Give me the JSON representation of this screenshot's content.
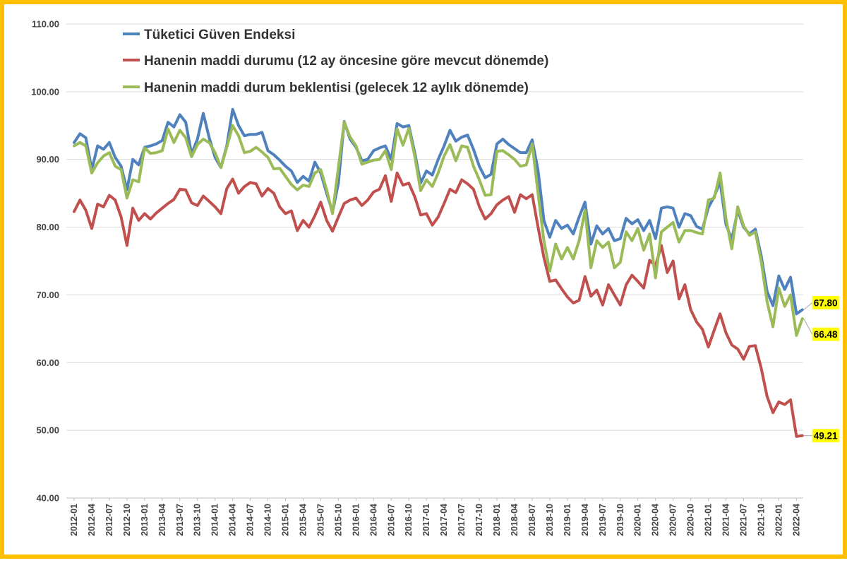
{
  "colors": {
    "frame": "#FFC000",
    "callout_bg": "#FFFF00",
    "grid": "#D9D9D9"
  },
  "chart_data": {
    "type": "line",
    "ylim": [
      40,
      110
    ],
    "y_ticks": [
      "40.00",
      "50.00",
      "60.00",
      "70.00",
      "80.00",
      "90.00",
      "100.00",
      "110.00"
    ],
    "y_tick_values": [
      40,
      50,
      60,
      70,
      80,
      90,
      100,
      110
    ],
    "grid": {
      "horizontal": true,
      "vertical": false
    },
    "legend_position": "top-left",
    "x_start": "2012-01",
    "x_end": "2022-05",
    "x_tick_labels": [
      "2012-01",
      "2012-04",
      "2012-07",
      "2012-10",
      "2013-01",
      "2013-04",
      "2013-07",
      "2013-10",
      "2014-01",
      "2014-04",
      "2014-07",
      "2014-10",
      "2015-01",
      "2015-04",
      "2015-07",
      "2015-10",
      "2016-01",
      "2016-04",
      "2016-07",
      "2016-10",
      "2017-01",
      "2017-04",
      "2017-07",
      "2017-10",
      "2018-01",
      "2018-04",
      "2018-07",
      "2018-10",
      "2019-01",
      "2019-04",
      "2019-07",
      "2019-10",
      "2020-01",
      "2020-04",
      "2020-07",
      "2020-10",
      "2021-01",
      "2021-04",
      "2021-07",
      "2021-10",
      "2022-01",
      "2022-04"
    ],
    "series": [
      {
        "name": "Tüketici Güven Endeksi",
        "color": "#4F81BD",
        "last_label": "67.80",
        "values": [
          92.5,
          93.8,
          93.2,
          88.5,
          92.0,
          91.5,
          92.5,
          90.3,
          89.0,
          85.5,
          90.0,
          89.2,
          91.8,
          92.0,
          92.3,
          92.8,
          95.5,
          94.8,
          96.6,
          95.5,
          90.8,
          93.0,
          96.8,
          93.2,
          90.3,
          88.8,
          92.0,
          97.4,
          95.0,
          93.5,
          93.7,
          93.7,
          94.0,
          91.3,
          90.7,
          89.9,
          89.0,
          88.3,
          86.6,
          87.5,
          86.8,
          89.6,
          88.0,
          85.0,
          82.2,
          86.5,
          95.6,
          93.0,
          91.8,
          89.8,
          90.0,
          91.3,
          91.7,
          92.0,
          90.0,
          95.3,
          94.8,
          95.0,
          91.0,
          86.5,
          88.3,
          87.7,
          90.0,
          92.0,
          94.3,
          92.7,
          93.3,
          93.6,
          91.5,
          89.0,
          87.3,
          87.8,
          92.3,
          93.0,
          92.2,
          91.6,
          91.0,
          91.0,
          92.9,
          88.4,
          81.0,
          78.5,
          81.0,
          79.8,
          80.3,
          79.0,
          81.5,
          83.7,
          77.5,
          80.2,
          79.0,
          79.8,
          78.0,
          78.3,
          81.3,
          80.5,
          81.1,
          79.5,
          81.0,
          78.3,
          82.8,
          83.0,
          82.8,
          80.0,
          82.0,
          81.7,
          80.1,
          79.7,
          82.9,
          84.5,
          86.7,
          80.4,
          78.2,
          82.5,
          80.0,
          79.0,
          79.7,
          75.8,
          70.5,
          68.4,
          72.8,
          70.8,
          72.6,
          67.2,
          67.8
        ]
      },
      {
        "name": "Hanenin maddi durumu (12 ay öncesine göre mevcut dönemde)",
        "color": "#C0504D",
        "last_label": "49.21",
        "values": [
          82.3,
          84.0,
          82.5,
          79.8,
          83.4,
          83.0,
          84.7,
          84.0,
          81.5,
          77.3,
          82.8,
          81.0,
          82.0,
          81.2,
          82.1,
          82.8,
          83.5,
          84.1,
          85.6,
          85.5,
          83.6,
          83.2,
          84.6,
          83.8,
          83.0,
          82.0,
          85.7,
          87.1,
          85.0,
          86.0,
          86.6,
          86.4,
          84.6,
          85.7,
          85.0,
          83.0,
          82.0,
          82.4,
          79.5,
          81.0,
          80.0,
          81.7,
          83.7,
          81.0,
          79.4,
          81.5,
          83.5,
          84.0,
          84.3,
          83.2,
          84.0,
          85.2,
          85.6,
          87.6,
          83.8,
          88.0,
          86.2,
          86.5,
          84.5,
          81.8,
          82.0,
          80.3,
          81.5,
          83.5,
          85.6,
          85.1,
          87.0,
          86.4,
          85.6,
          83.0,
          81.2,
          82.0,
          83.3,
          84.0,
          84.5,
          82.2,
          84.8,
          84.2,
          84.8,
          80.0,
          75.5,
          72.0,
          72.2,
          70.9,
          69.7,
          68.8,
          69.2,
          72.7,
          69.8,
          70.7,
          68.5,
          71.5,
          70.0,
          68.5,
          71.5,
          72.9,
          72.0,
          71.0,
          75.1,
          74.3,
          77.3,
          73.3,
          75.0,
          69.4,
          71.5,
          67.8,
          66.0,
          64.9,
          62.3,
          64.8,
          67.2,
          64.4,
          62.6,
          62.0,
          60.5,
          62.4,
          62.5,
          59.2,
          55.0,
          52.6,
          54.2,
          53.8,
          54.5,
          49.1,
          49.21
        ]
      },
      {
        "name": "Hanenin maddi durum beklentisi (gelecek 12 aylık dönemde)",
        "color": "#9BBB59",
        "last_label": "66.48",
        "values": [
          92.0,
          92.5,
          92.0,
          88.0,
          89.5,
          90.5,
          91.0,
          89.0,
          88.5,
          84.3,
          87.0,
          86.7,
          91.7,
          90.9,
          91.0,
          91.3,
          94.5,
          92.5,
          94.3,
          93.2,
          90.4,
          92.2,
          93.0,
          92.5,
          91.0,
          88.8,
          91.8,
          95.0,
          93.5,
          91.0,
          91.2,
          91.8,
          91.1,
          90.3,
          88.6,
          88.7,
          87.5,
          86.3,
          85.5,
          86.2,
          86.0,
          88.0,
          88.5,
          85.5,
          82.0,
          88.8,
          95.5,
          93.3,
          92.0,
          89.3,
          89.6,
          89.9,
          90.0,
          91.3,
          88.5,
          94.5,
          92.1,
          94.6,
          90.5,
          85.4,
          87.0,
          86.0,
          88.0,
          90.5,
          92.2,
          89.8,
          92.0,
          91.8,
          89.0,
          87.0,
          84.7,
          84.8,
          91.2,
          91.3,
          90.7,
          90.0,
          89.0,
          89.2,
          92.3,
          85.0,
          78.0,
          73.5,
          77.5,
          75.3,
          77.0,
          75.3,
          78.0,
          82.5,
          74.0,
          78.0,
          77.0,
          77.8,
          74.0,
          74.8,
          79.3,
          78.0,
          79.8,
          76.6,
          79.0,
          72.5,
          79.3,
          80.0,
          80.7,
          77.8,
          79.5,
          79.5,
          79.2,
          79.0,
          84.0,
          84.3,
          88.0,
          81.3,
          76.8,
          83.0,
          80.2,
          78.8,
          79.3,
          75.0,
          69.0,
          65.3,
          71.0,
          68.3,
          70.0,
          64.0,
          66.48
        ]
      }
    ]
  }
}
